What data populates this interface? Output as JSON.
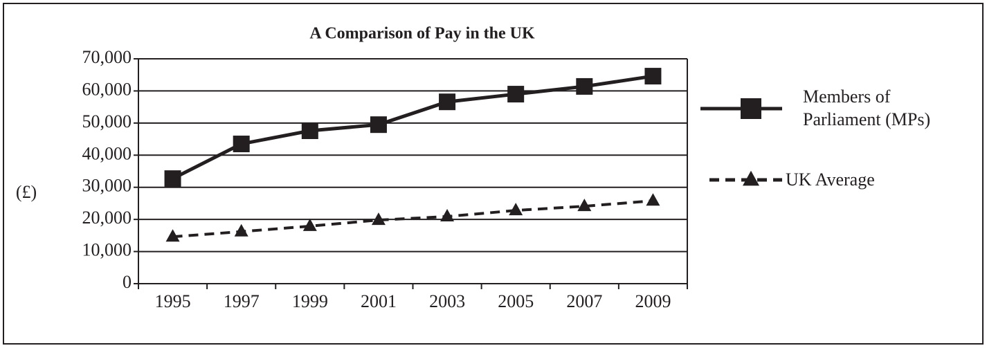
{
  "chart_data": {
    "type": "line",
    "title": "A Comparison of Pay in the UK",
    "y_label": "(£)",
    "categories": [
      "1995",
      "1997",
      "1999",
      "2001",
      "2003",
      "2005",
      "2007",
      "2009"
    ],
    "series": [
      {
        "name": "Members of Parliament (MPs)",
        "color": "#231f20",
        "marker": "square",
        "dashed": false,
        "values": [
          32700,
          43500,
          47600,
          49500,
          56600,
          59000,
          61400,
          64600
        ]
      },
      {
        "name": "UK Average",
        "color": "#231f20",
        "marker": "triangle",
        "dashed": true,
        "values": [
          14600,
          16200,
          17900,
          19800,
          20900,
          22800,
          24100,
          25800
        ]
      }
    ],
    "ylim": [
      0,
      70000
    ],
    "yticks": [
      0,
      {
        "value": 10000,
        "label": "10,000"
      },
      {
        "value": 20000,
        "label": "20,000"
      },
      {
        "value": 30000,
        "label": "30,000"
      },
      {
        "value": 40000,
        "label": "40,000"
      },
      {
        "value": 50000,
        "label": "50,000"
      },
      {
        "value": 60000,
        "label": "60,000"
      },
      {
        "value": 70000,
        "label": "70,000"
      }
    ],
    "grid": true,
    "legend": "right"
  }
}
